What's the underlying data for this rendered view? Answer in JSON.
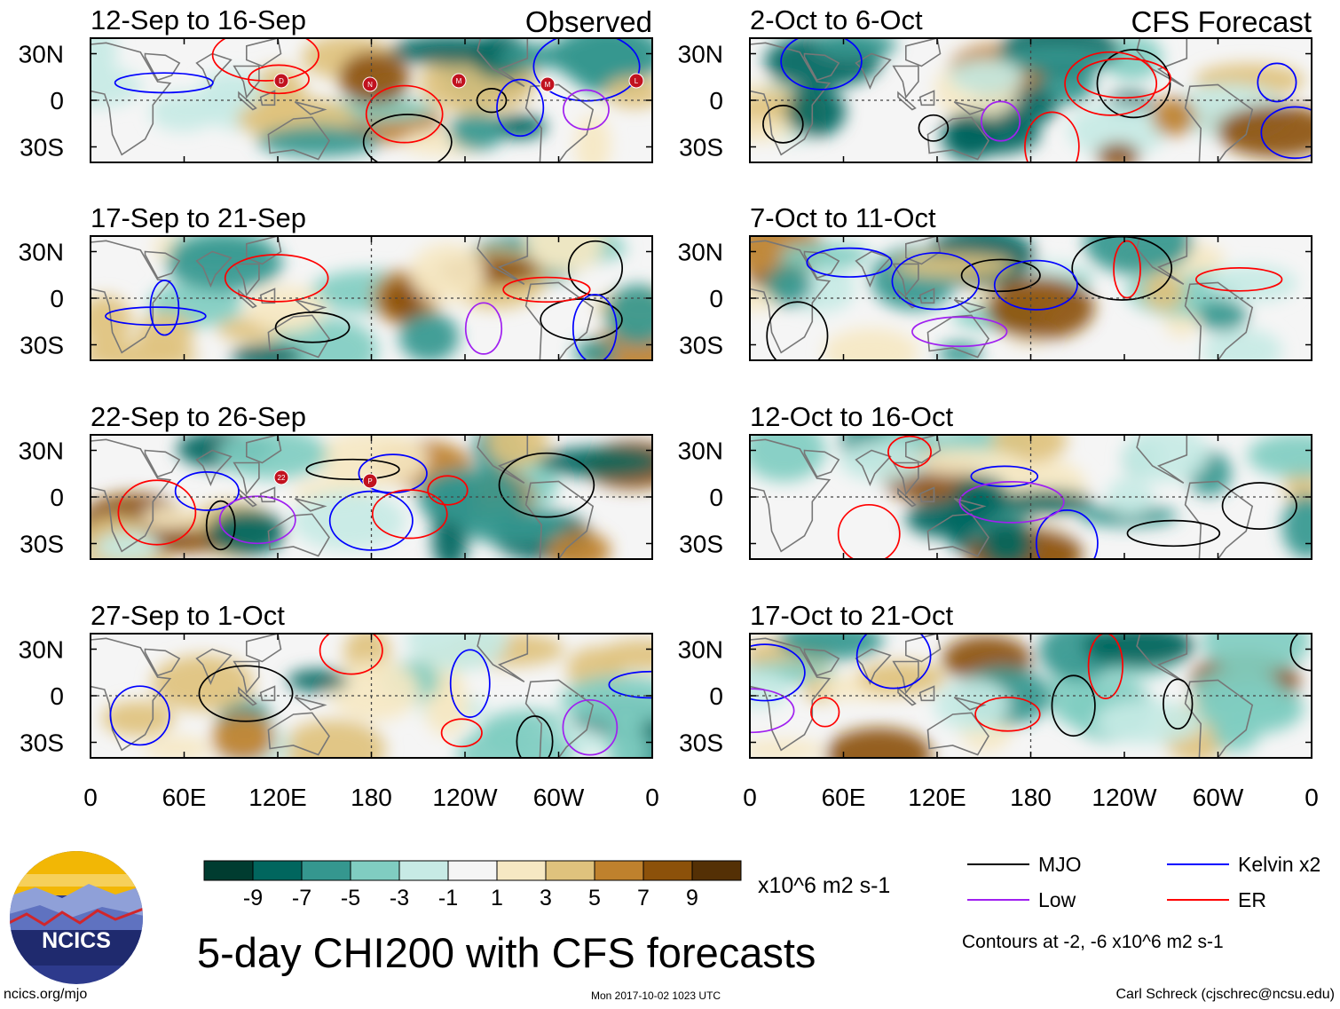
{
  "chart_data": {
    "type": "heatmap",
    "title": "5-day CHI200 with CFS forecasts",
    "variable": "CHI200",
    "units": "x10^6 m2 s-1",
    "colorbar": {
      "labels": [
        "-9",
        "-7",
        "-5",
        "-3",
        "-1",
        "1",
        "3",
        "5",
        "7",
        "9"
      ],
      "colors": [
        "#003c30",
        "#01665e",
        "#35978f",
        "#80cdc1",
        "#c7eae5",
        "#f5f5f5",
        "#f6e8c3",
        "#dfc27d",
        "#bf812d",
        "#8c510a",
        "#543005"
      ]
    },
    "x_ticks": [
      "0",
      "60E",
      "120E",
      "180",
      "120W",
      "60W",
      "0"
    ],
    "y_ticks": [
      "30N",
      "0",
      "30S"
    ],
    "lat_range": [
      -40,
      40
    ],
    "lon_range": [
      0,
      360
    ],
    "column_headers": {
      "observed": "Observed",
      "forecast": "CFS Forecast"
    },
    "panels": [
      {
        "title": "12-Sep to 16-Sep",
        "kind": "observed",
        "storms": [
          "D",
          "N",
          "M",
          "M",
          "L"
        ]
      },
      {
        "title": "17-Sep to 21-Sep",
        "kind": "observed",
        "storms": []
      },
      {
        "title": "22-Sep to 26-Sep",
        "kind": "observed",
        "storms": [
          "22",
          "P"
        ]
      },
      {
        "title": "27-Sep to 1-Oct",
        "kind": "observed",
        "storms": []
      },
      {
        "title": "2-Oct to 6-Oct",
        "kind": "forecast",
        "storms": []
      },
      {
        "title": "7-Oct to 11-Oct",
        "kind": "forecast",
        "storms": []
      },
      {
        "title": "12-Oct to 16-Oct",
        "kind": "forecast",
        "storms": []
      },
      {
        "title": "17-Oct to 21-Oct",
        "kind": "forecast",
        "storms": []
      }
    ],
    "legend": [
      {
        "name": "MJO",
        "color": "#000000"
      },
      {
        "name": "Kelvin x2",
        "color": "#0000ff"
      },
      {
        "name": "Low",
        "color": "#a020f0"
      },
      {
        "name": "ER",
        "color": "#ff0000"
      }
    ],
    "contour_note": "Contours at -2, -6 x10^6 m2 s-1"
  },
  "branding": {
    "logo_text": "NCICS"
  },
  "footer": {
    "site": "ncics.org/mjo",
    "timestamp": "Mon 2017-10-02 1023 UTC",
    "author": "Carl Schreck (cjschrec@ncsu.edu)"
  }
}
